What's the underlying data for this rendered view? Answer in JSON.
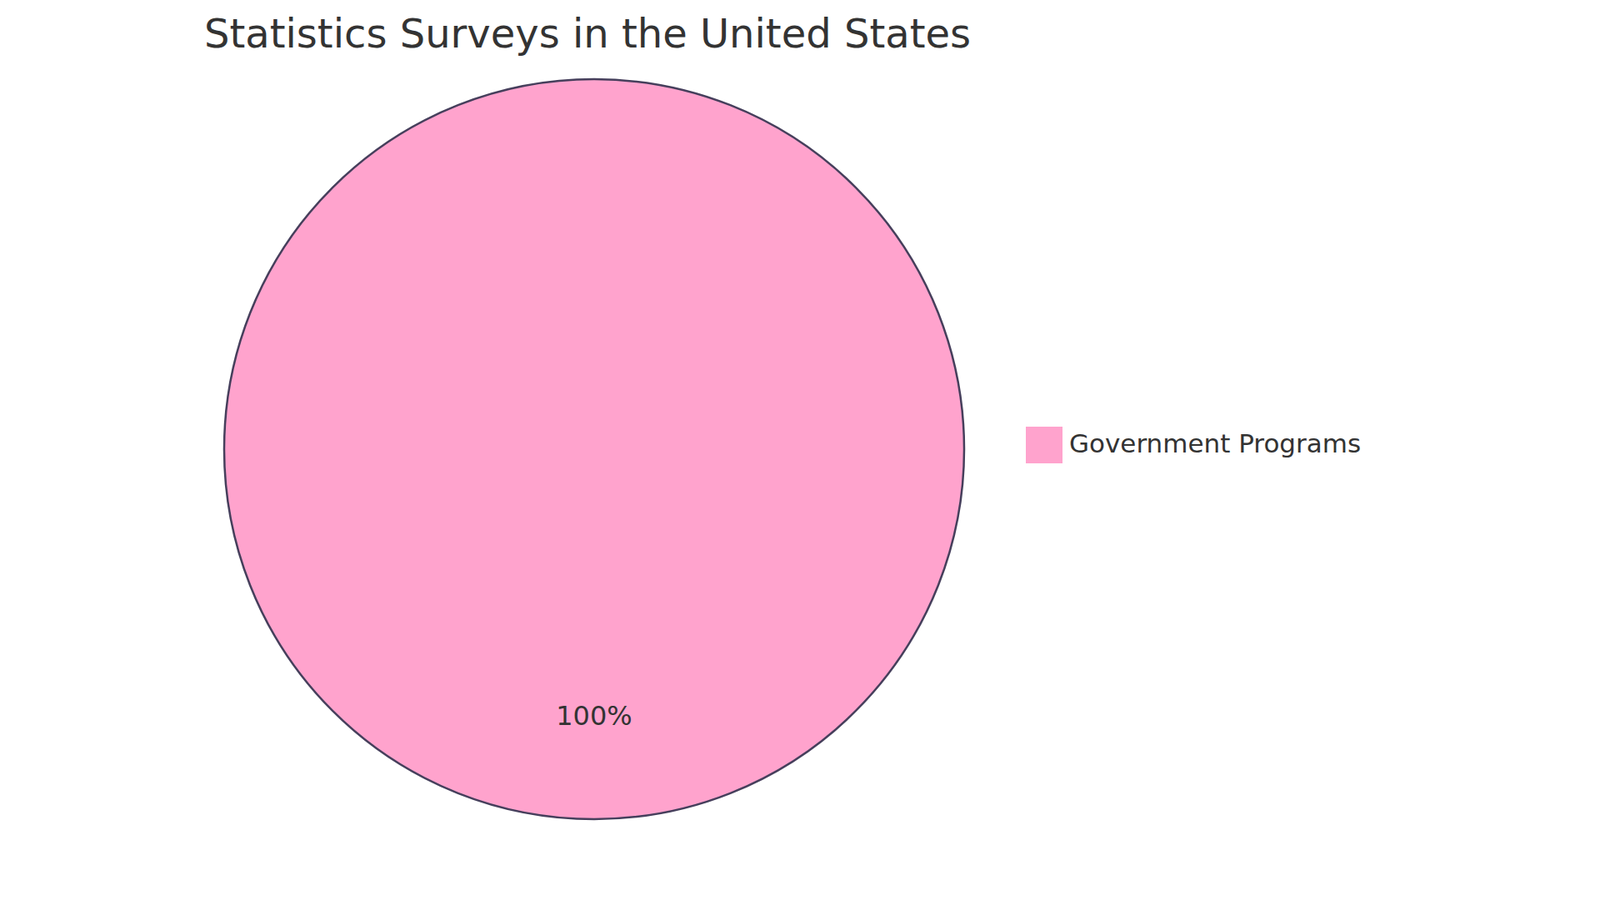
{
  "chart_data": {
    "type": "pie",
    "title": "Statistics Surveys in the United States",
    "categories": [
      "Government Programs"
    ],
    "values": [
      100
    ],
    "colors": [
      "#ffa3cd"
    ],
    "data_labels": true,
    "value_labels": [
      "100%"
    ],
    "legend": "right"
  }
}
